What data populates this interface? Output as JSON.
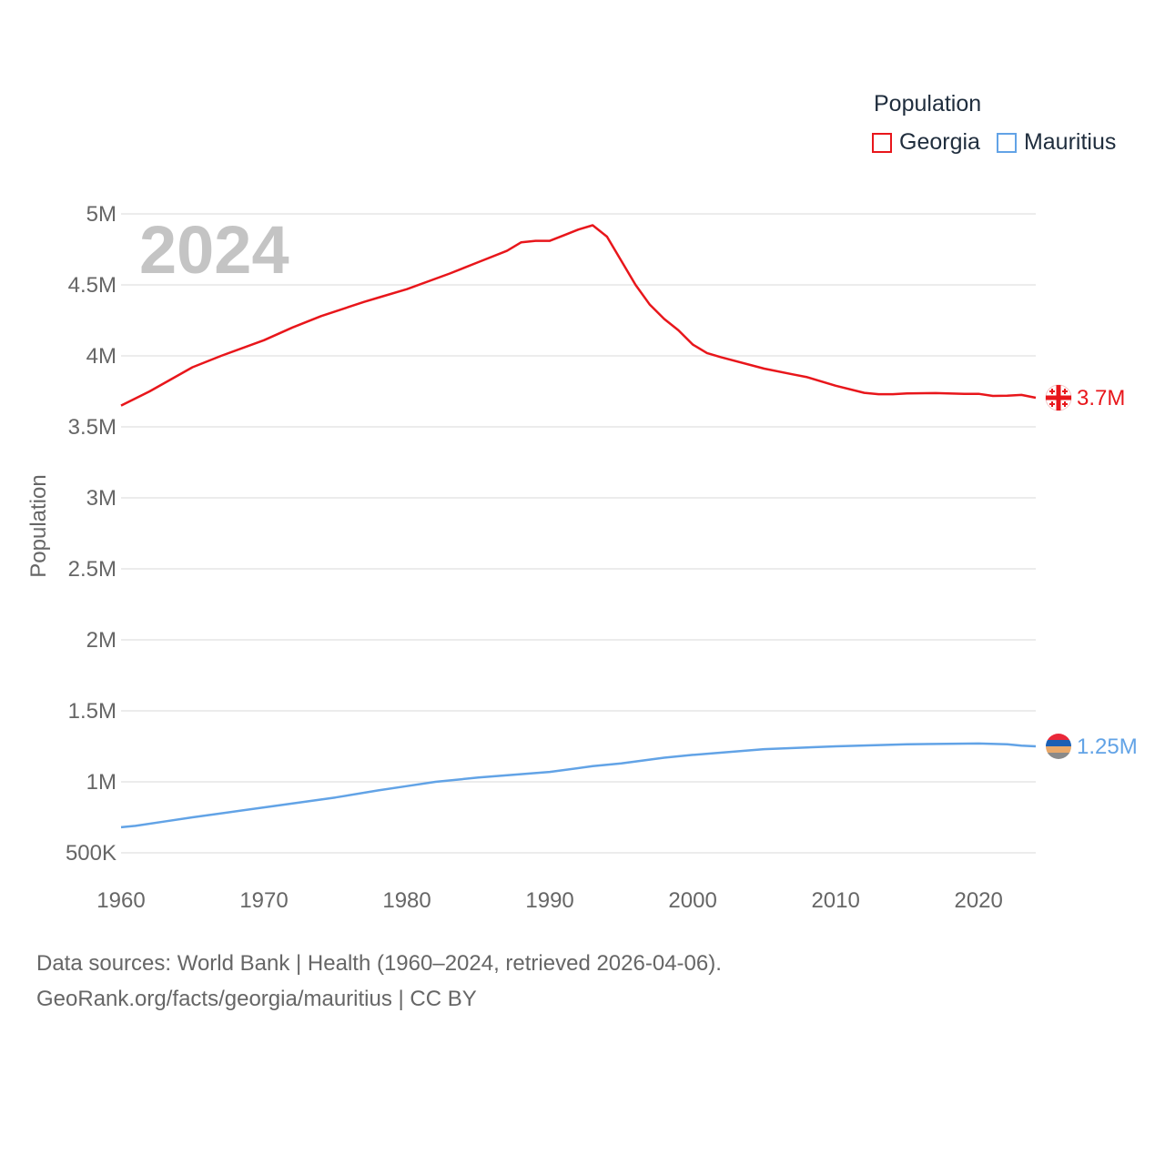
{
  "legend": {
    "title": "Population",
    "items": [
      {
        "label": "Georgia",
        "color": "#e8161b"
      },
      {
        "label": "Mauritius",
        "color": "#62a3e6"
      }
    ]
  },
  "footer": {
    "line1": "Data sources: World Bank | Health (1960–2024, retrieved 2026-04-06).",
    "line2": "GeoRank.org/facts/georgia/mauritius | CC BY"
  },
  "chart_data": {
    "type": "line",
    "year_label": "2024",
    "ylabel": "Population",
    "ylim": [
      500000,
      5000000
    ],
    "xlim": [
      1960,
      2024
    ],
    "y_ticks": [
      {
        "value": 500000,
        "label": "500K"
      },
      {
        "value": 1000000,
        "label": "1M"
      },
      {
        "value": 1500000,
        "label": "1.5M"
      },
      {
        "value": 2000000,
        "label": "2M"
      },
      {
        "value": 2500000,
        "label": "2.5M"
      },
      {
        "value": 3000000,
        "label": "3M"
      },
      {
        "value": 3500000,
        "label": "3.5M"
      },
      {
        "value": 4000000,
        "label": "4M"
      },
      {
        "value": 4500000,
        "label": "4.5M"
      },
      {
        "value": 5000000,
        "label": "5M"
      }
    ],
    "x_ticks": [
      {
        "value": 1960,
        "label": "1960"
      },
      {
        "value": 1970,
        "label": "1970"
      },
      {
        "value": 1980,
        "label": "1980"
      },
      {
        "value": 1990,
        "label": "1990"
      },
      {
        "value": 2000,
        "label": "2000"
      },
      {
        "value": 2010,
        "label": "2010"
      },
      {
        "value": 2020,
        "label": "2020"
      }
    ],
    "series": [
      {
        "name": "Georgia",
        "color": "#e8161b",
        "end_label": "3.7M",
        "x": [
          1960,
          1962,
          1965,
          1967,
          1970,
          1972,
          1974,
          1977,
          1978,
          1980,
          1983,
          1985,
          1987,
          1988,
          1989,
          1990,
          1991,
          1992,
          1993,
          1994,
          1995,
          1996,
          1997,
          1998,
          1999,
          2000,
          2001,
          2002,
          2005,
          2007,
          2008,
          2010,
          2012,
          2013,
          2014,
          2015,
          2017,
          2019,
          2020,
          2021,
          2022,
          2023,
          2024
        ],
        "values": [
          3650000,
          3750000,
          3920000,
          4000000,
          4110000,
          4200000,
          4280000,
          4380000,
          4410000,
          4470000,
          4580000,
          4660000,
          4740000,
          4800000,
          4810000,
          4810000,
          4850000,
          4890000,
          4920000,
          4840000,
          4670000,
          4500000,
          4360000,
          4260000,
          4180000,
          4080000,
          4020000,
          3990000,
          3910000,
          3870000,
          3850000,
          3790000,
          3740000,
          3730000,
          3730000,
          3735000,
          3738000,
          3732000,
          3733000,
          3718000,
          3720000,
          3725000,
          3705000
        ]
      },
      {
        "name": "Mauritius",
        "color": "#62a3e6",
        "end_label": "1.25M",
        "x": [
          1960,
          1961,
          1963,
          1965,
          1970,
          1975,
          1978,
          1980,
          1982,
          1985,
          1990,
          1993,
          1995,
          1998,
          2000,
          2005,
          2010,
          2015,
          2020,
          2022,
          2023,
          2024
        ],
        "values": [
          680000,
          690000,
          720000,
          750000,
          820000,
          890000,
          940000,
          970000,
          1000000,
          1030000,
          1070000,
          1110000,
          1130000,
          1170000,
          1190000,
          1230000,
          1250000,
          1265000,
          1270000,
          1265000,
          1255000,
          1250000
        ]
      }
    ]
  }
}
